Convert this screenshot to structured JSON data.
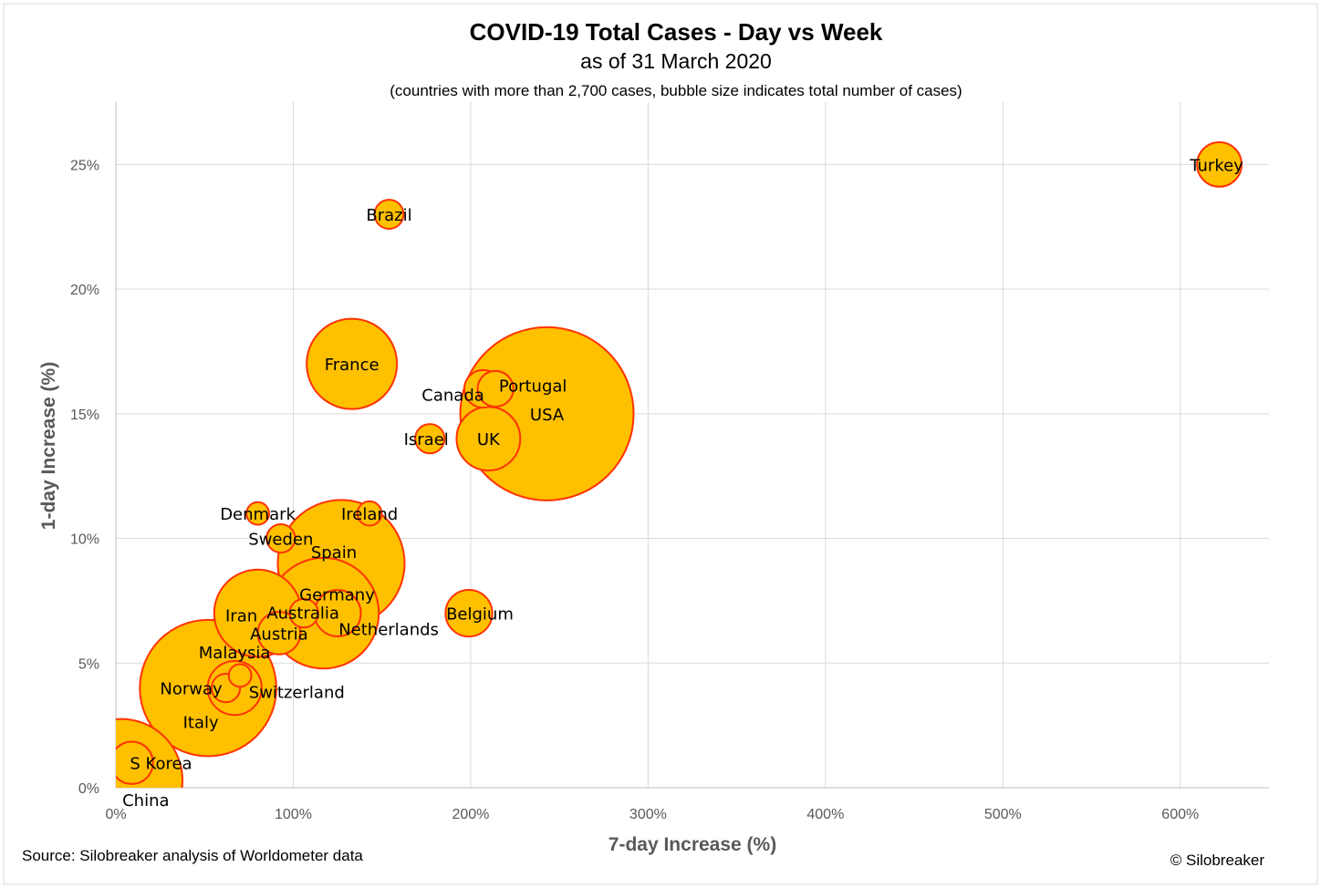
{
  "chart_data": {
    "type": "bubble",
    "title": "COVID-19 Total Cases - Day vs Week",
    "subtitle": "as of 31 March 2020",
    "note": "(countries with more than 2,700 cases, bubble size indicates total number of cases)",
    "xlabel": "7-day Increase (%)",
    "ylabel": "1-day Increase (%)",
    "xlim": [
      0,
      650
    ],
    "ylim": [
      0,
      27.5
    ],
    "x_ticks": [
      "0%",
      "100%",
      "200%",
      "300%",
      "400%",
      "500%",
      "600%"
    ],
    "y_ticks": [
      "0%",
      "5%",
      "10%",
      "15%",
      "20%",
      "25%"
    ],
    "grid": true,
    "bubble_fill": "#FFC000",
    "bubble_stroke": "#FF3300",
    "points": [
      {
        "label": "China",
        "x": 3,
        "y": 0.3,
        "size": 82000
      },
      {
        "label": "Italy",
        "x": 52,
        "y": 4.0,
        "size": 101700
      },
      {
        "label": "USA",
        "x": 243,
        "y": 15.0,
        "size": 164000
      },
      {
        "label": "Spain",
        "x": 127,
        "y": 9.0,
        "size": 87900
      },
      {
        "label": "Germany",
        "x": 117,
        "y": 7.0,
        "size": 67000
      },
      {
        "label": "France",
        "x": 133,
        "y": 17.0,
        "size": 44500
      },
      {
        "label": "Iran",
        "x": 80,
        "y": 7.0,
        "size": 41500
      },
      {
        "label": "UK",
        "x": 210,
        "y": 14.0,
        "size": 22100
      },
      {
        "label": "Switzerland",
        "x": 67,
        "y": 4.0,
        "size": 15900
      },
      {
        "label": "Belgium",
        "x": 199,
        "y": 7.0,
        "size": 11900
      },
      {
        "label": "Netherlands",
        "x": 125,
        "y": 7.0,
        "size": 11700
      },
      {
        "label": "Turkey",
        "x": 622,
        "y": 25.0,
        "size": 10800
      },
      {
        "label": "S Korea",
        "x": 9,
        "y": 1.0,
        "size": 9800
      },
      {
        "label": "Austria",
        "x": 92,
        "y": 6.2,
        "size": 9900
      },
      {
        "label": "Canada",
        "x": 207,
        "y": 16.0,
        "size": 7700
      },
      {
        "label": "Portugal",
        "x": 214,
        "y": 16.0,
        "size": 7000
      },
      {
        "label": "Israel",
        "x": 177,
        "y": 14.0,
        "size": 4700
      },
      {
        "label": "Brazil",
        "x": 154,
        "y": 23.0,
        "size": 4600
      },
      {
        "label": "Norway",
        "x": 62,
        "y": 4.0,
        "size": 4400
      },
      {
        "label": "Australia",
        "x": 106,
        "y": 7.0,
        "size": 4500
      },
      {
        "label": "Sweden",
        "x": 93,
        "y": 10.0,
        "size": 4400
      },
      {
        "label": "Ireland",
        "x": 143,
        "y": 11.0,
        "size": 3200
      },
      {
        "label": "Malaysia",
        "x": 70,
        "y": 4.5,
        "size": 2800
      },
      {
        "label": "Denmark",
        "x": 80,
        "y": 11.0,
        "size": 2800
      }
    ]
  },
  "footer": {
    "source": "Source: Silobreaker analysis of Worldometer data",
    "copyright": "© Silobreaker"
  }
}
